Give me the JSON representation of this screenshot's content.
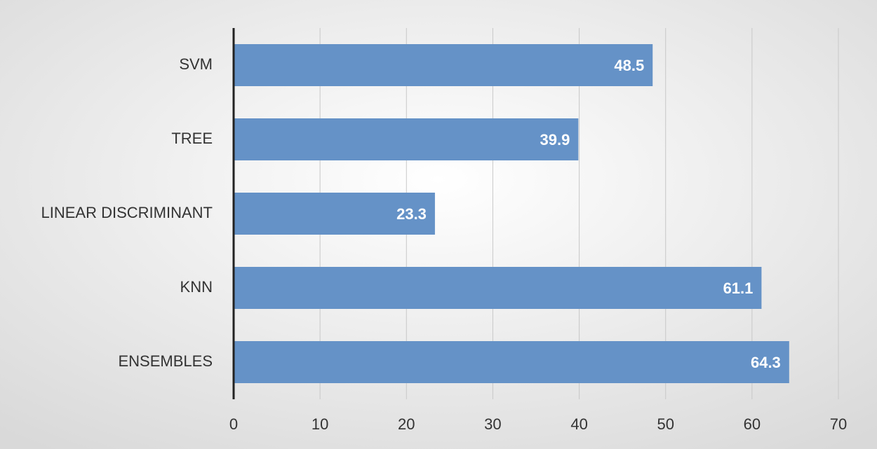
{
  "chart_data": {
    "type": "bar",
    "categories": [
      "SVM",
      "TREE",
      "LINEAR DISCRIMINANT",
      "KNN",
      "ENSEMBLES"
    ],
    "values": [
      48.5,
      39.9,
      23.3,
      61.1,
      64.3
    ],
    "color": "#6592c7",
    "xlim": [
      0,
      70
    ],
    "xticks": [
      0,
      10,
      20,
      30,
      40,
      50,
      60,
      70
    ],
    "grid": true
  }
}
